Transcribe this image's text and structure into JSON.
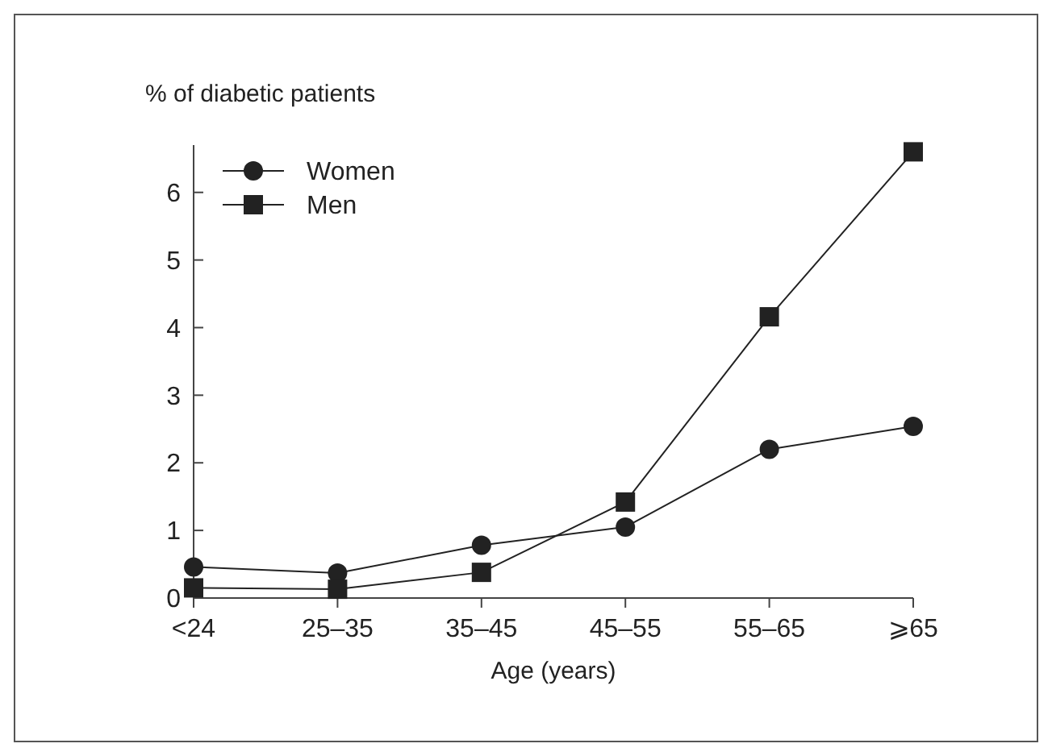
{
  "chart_data": {
    "type": "line",
    "ylabel": "% of diabetic patients",
    "xlabel": "Age (years)",
    "categories": [
      "<24",
      "25–35",
      "35–45",
      "45–55",
      "55–65",
      "⩾65"
    ],
    "series": [
      {
        "name": "Women",
        "color": "#222222",
        "marker": "circle",
        "values": [
          0.46,
          0.37,
          0.78,
          1.05,
          2.2,
          2.54
        ]
      },
      {
        "name": "Men",
        "color": "#222222",
        "marker": "square",
        "values": [
          0.15,
          0.13,
          0.38,
          1.42,
          4.16,
          6.6
        ]
      }
    ],
    "ylim": [
      0,
      6.7
    ],
    "yticks": [
      0,
      1,
      2,
      3,
      4,
      5,
      6
    ],
    "grid": false,
    "legend": "top left",
    "line_style": "solid"
  }
}
